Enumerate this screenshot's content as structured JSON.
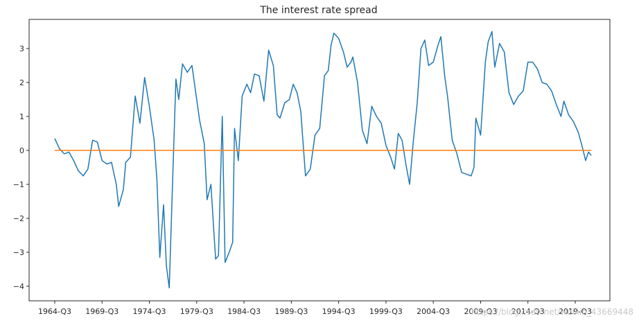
{
  "chart_data": {
    "type": "line",
    "title": "The interest rate spread",
    "xlabel": "",
    "ylabel": "",
    "ylim": [
      -4.4,
      3.85
    ],
    "y_ticks": [
      3,
      2,
      1,
      0,
      -1,
      -2,
      -3,
      -4
    ],
    "x_tick_labels": [
      "1964-Q3",
      "1969-Q3",
      "1974-Q3",
      "1979-Q3",
      "1984-Q3",
      "1989-Q3",
      "1994-Q3",
      "1999-Q3",
      "2004-Q3",
      "2009-Q3",
      "2014-Q3",
      "2019-Q3"
    ],
    "grid": false,
    "legend": "none",
    "series": [
      {
        "color": "#1f77b4",
        "points": [
          [
            1964.5,
            0.35
          ],
          [
            1965.0,
            0.05
          ],
          [
            1965.5,
            -0.1
          ],
          [
            1966.0,
            -0.05
          ],
          [
            1966.5,
            -0.3
          ],
          [
            1967.0,
            -0.6
          ],
          [
            1967.5,
            -0.75
          ],
          [
            1968.0,
            -0.55
          ],
          [
            1968.5,
            0.3
          ],
          [
            1969.0,
            0.25
          ],
          [
            1969.5,
            -0.3
          ],
          [
            1970.0,
            -0.4
          ],
          [
            1970.5,
            -0.35
          ],
          [
            1971.0,
            -1.0
          ],
          [
            1971.25,
            -1.65
          ],
          [
            1971.75,
            -1.15
          ],
          [
            1972.0,
            -0.35
          ],
          [
            1972.5,
            -0.2
          ],
          [
            1973.0,
            1.6
          ],
          [
            1973.5,
            0.8
          ],
          [
            1974.0,
            2.15
          ],
          [
            1974.5,
            1.3
          ],
          [
            1975.0,
            0.3
          ],
          [
            1975.3,
            -0.9
          ],
          [
            1975.6,
            -3.15
          ],
          [
            1976.0,
            -1.6
          ],
          [
            1976.3,
            -3.4
          ],
          [
            1976.6,
            -4.05
          ],
          [
            1977.0,
            -0.5
          ],
          [
            1977.3,
            2.1
          ],
          [
            1977.6,
            1.5
          ],
          [
            1978.0,
            2.55
          ],
          [
            1978.5,
            2.3
          ],
          [
            1979.0,
            2.5
          ],
          [
            1979.5,
            1.5
          ],
          [
            1979.8,
            0.9
          ],
          [
            1980.3,
            0.2
          ],
          [
            1980.6,
            -1.45
          ],
          [
            1981.0,
            -1.0
          ],
          [
            1981.5,
            -3.2
          ],
          [
            1981.8,
            -3.1
          ],
          [
            1982.2,
            1.0
          ],
          [
            1982.5,
            -3.3
          ],
          [
            1983.0,
            -2.95
          ],
          [
            1983.3,
            -2.7
          ],
          [
            1983.5,
            0.65
          ],
          [
            1983.9,
            -0.3
          ],
          [
            1984.3,
            1.6
          ],
          [
            1984.8,
            1.95
          ],
          [
            1985.2,
            1.7
          ],
          [
            1985.6,
            2.25
          ],
          [
            1986.1,
            2.2
          ],
          [
            1986.6,
            1.45
          ],
          [
            1987.1,
            2.95
          ],
          [
            1987.6,
            2.5
          ],
          [
            1988.0,
            1.05
          ],
          [
            1988.3,
            0.95
          ],
          [
            1988.8,
            1.4
          ],
          [
            1989.3,
            1.5
          ],
          [
            1989.7,
            1.95
          ],
          [
            1990.1,
            1.7
          ],
          [
            1990.5,
            1.15
          ],
          [
            1991.0,
            -0.75
          ],
          [
            1991.5,
            -0.55
          ],
          [
            1992.0,
            0.45
          ],
          [
            1992.5,
            0.65
          ],
          [
            1993.0,
            2.2
          ],
          [
            1993.4,
            2.35
          ],
          [
            1993.7,
            3.1
          ],
          [
            1994.0,
            3.45
          ],
          [
            1994.5,
            3.3
          ],
          [
            1995.0,
            2.9
          ],
          [
            1995.4,
            2.45
          ],
          [
            1995.8,
            2.6
          ],
          [
            1996.0,
            2.75
          ],
          [
            1996.5,
            2.0
          ],
          [
            1997.0,
            0.6
          ],
          [
            1997.5,
            0.2
          ],
          [
            1998.0,
            1.3
          ],
          [
            1998.5,
            1.0
          ],
          [
            1999.0,
            0.8
          ],
          [
            1999.5,
            0.15
          ],
          [
            2000.0,
            -0.2
          ],
          [
            2000.4,
            -0.55
          ],
          [
            2000.8,
            0.5
          ],
          [
            2001.2,
            0.3
          ],
          [
            2001.6,
            -0.4
          ],
          [
            2002.0,
            -1.0
          ],
          [
            2002.4,
            0.3
          ],
          [
            2002.8,
            1.4
          ],
          [
            2003.2,
            3.0
          ],
          [
            2003.6,
            3.25
          ],
          [
            2004.0,
            2.5
          ],
          [
            2004.5,
            2.6
          ],
          [
            2005.0,
            3.1
          ],
          [
            2005.3,
            3.35
          ],
          [
            2005.7,
            2.2
          ],
          [
            2006.0,
            1.6
          ],
          [
            2006.5,
            0.3
          ],
          [
            2007.0,
            -0.1
          ],
          [
            2007.5,
            -0.65
          ],
          [
            2008.0,
            -0.7
          ],
          [
            2008.5,
            -0.75
          ],
          [
            2008.8,
            -0.5
          ],
          [
            2009.0,
            0.95
          ],
          [
            2009.5,
            0.45
          ],
          [
            2010.0,
            2.6
          ],
          [
            2010.3,
            3.2
          ],
          [
            2010.7,
            3.5
          ],
          [
            2011.0,
            2.45
          ],
          [
            2011.5,
            3.15
          ],
          [
            2012.0,
            2.9
          ],
          [
            2012.5,
            1.7
          ],
          [
            2013.0,
            1.35
          ],
          [
            2013.5,
            1.6
          ],
          [
            2014.0,
            1.75
          ],
          [
            2014.5,
            2.6
          ],
          [
            2015.0,
            2.6
          ],
          [
            2015.5,
            2.4
          ],
          [
            2016.0,
            2.0
          ],
          [
            2016.5,
            1.95
          ],
          [
            2017.0,
            1.75
          ],
          [
            2017.5,
            1.35
          ],
          [
            2018.0,
            1.0
          ],
          [
            2018.3,
            1.45
          ],
          [
            2018.8,
            1.05
          ],
          [
            2019.3,
            0.85
          ],
          [
            2019.8,
            0.55
          ],
          [
            2020.2,
            0.15
          ],
          [
            2020.6,
            -0.3
          ],
          [
            2020.9,
            -0.05
          ],
          [
            2021.2,
            -0.15
          ]
        ]
      },
      {
        "color": "#ff7f0e",
        "points": [
          [
            1964.5,
            0.0
          ],
          [
            2021.2,
            0.0
          ]
        ]
      }
    ]
  },
  "watermark": "https://blog.csdn.net/weixin_43669448"
}
